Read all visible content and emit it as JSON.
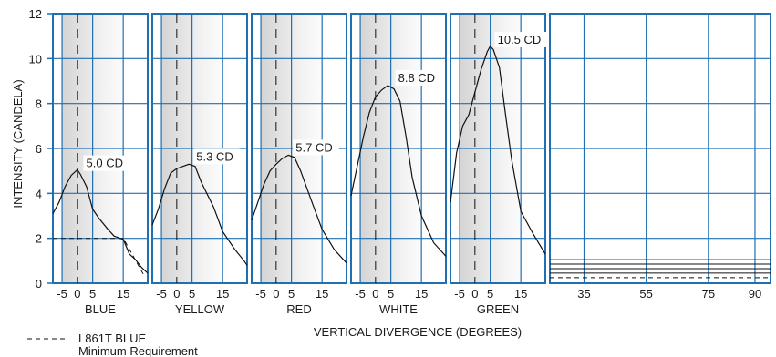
{
  "chart_data": {
    "type": "line",
    "ylabel": "INTENSITY (CANDELA)",
    "xlabel": "VERTICAL DIVERGENCE (DEGREES)",
    "ylim": [
      0,
      12
    ],
    "yticks": [
      0,
      2,
      4,
      6,
      8,
      10,
      12
    ],
    "colors": {
      "frame": "#1f6fb2",
      "curve": "#111111",
      "shade": "#e6e6e6"
    },
    "panels": [
      {
        "name": "BLUE",
        "xlim": [
          -8,
          23
        ],
        "xtick_labels": [
          "-5",
          "0",
          "5",
          "15"
        ],
        "xtick_values": [
          -5,
          0,
          5,
          15
        ],
        "peak_label": "5.0 CD",
        "peak_x": 0.5,
        "peak_y": 5.0,
        "x": [
          -8,
          -6,
          -4,
          -2,
          0,
          1,
          3,
          5,
          7,
          10,
          12,
          15,
          17,
          19,
          21,
          23
        ],
        "y": [
          3.1,
          3.6,
          4.3,
          4.8,
          5.05,
          4.85,
          4.3,
          3.3,
          2.9,
          2.4,
          2.1,
          1.95,
          1.3,
          1.05,
          0.7,
          0.45
        ],
        "min_x": [
          -8,
          15,
          22
        ],
        "min_y": [
          2,
          2,
          0.3
        ]
      },
      {
        "name": "YELLOW",
        "xlim": [
          -8,
          23
        ],
        "xtick_labels": [
          "-5",
          "0",
          "5",
          "15"
        ],
        "xtick_values": [
          -5,
          0,
          5,
          15
        ],
        "peak_label": "5.3 CD",
        "peak_x": 4,
        "peak_y": 5.3,
        "x": [
          -8,
          -6,
          -4,
          -2,
          0,
          2,
          4,
          6,
          8,
          12,
          15,
          19,
          22,
          23
        ],
        "y": [
          2.6,
          3.3,
          4.2,
          4.9,
          5.1,
          5.2,
          5.3,
          5.2,
          4.5,
          3.4,
          2.3,
          1.5,
          1.0,
          0.8
        ]
      },
      {
        "name": "RED",
        "xlim": [
          -8,
          23
        ],
        "xtick_labels": [
          "-5",
          "0",
          "5",
          "15"
        ],
        "xtick_values": [
          -5,
          0,
          5,
          15
        ],
        "peak_label": "5.7 CD",
        "peak_x": 4,
        "peak_y": 5.7,
        "x": [
          -8,
          -6,
          -4,
          -2,
          0,
          2,
          4,
          6,
          8,
          12,
          15,
          19,
          23
        ],
        "y": [
          2.8,
          3.6,
          4.4,
          5.0,
          5.3,
          5.55,
          5.7,
          5.6,
          5.0,
          3.5,
          2.4,
          1.5,
          0.9
        ]
      },
      {
        "name": "WHITE",
        "xlim": [
          -8,
          23
        ],
        "xtick_labels": [
          "-5",
          "0",
          "5",
          "15"
        ],
        "xtick_values": [
          -5,
          0,
          5,
          15
        ],
        "peak_label": "8.8 CD",
        "peak_x": 5,
        "peak_y": 8.8,
        "x": [
          -8,
          -6,
          -4,
          -2,
          0,
          2,
          4,
          6,
          8,
          10,
          12,
          15,
          19,
          23
        ],
        "y": [
          3.9,
          5.2,
          6.5,
          7.6,
          8.3,
          8.6,
          8.8,
          8.65,
          8.1,
          6.5,
          4.7,
          3.0,
          1.8,
          1.2
        ]
      },
      {
        "name": "GREEN",
        "xlim": [
          -8,
          23
        ],
        "xtick_labels": [
          "-5",
          "0",
          "5",
          "15"
        ],
        "xtick_values": [
          -5,
          0,
          5,
          15
        ],
        "peak_label": "10.5 CD",
        "peak_x": 5,
        "peak_y": 10.5,
        "x": [
          -8,
          -6,
          -4,
          -2,
          0,
          2,
          4,
          5,
          6,
          8,
          10,
          12,
          15,
          19,
          23
        ],
        "y": [
          3.6,
          5.8,
          7.0,
          7.5,
          8.5,
          9.5,
          10.3,
          10.55,
          10.4,
          9.6,
          7.5,
          5.5,
          3.2,
          2.2,
          1.3
        ]
      },
      {
        "name": "",
        "xlim": [
          24,
          95
        ],
        "xtick_labels": [
          "35",
          "55",
          "75",
          "90"
        ],
        "xtick_values": [
          35,
          55,
          75,
          90
        ],
        "hlines": [
          1.05,
          0.85,
          0.65,
          0.45
        ],
        "dashed_hline": 0.25
      }
    ],
    "legend": {
      "line_label": "L861T BLUE",
      "sub_label": "Minimum Requirement",
      "placement": "bottom-left"
    }
  }
}
